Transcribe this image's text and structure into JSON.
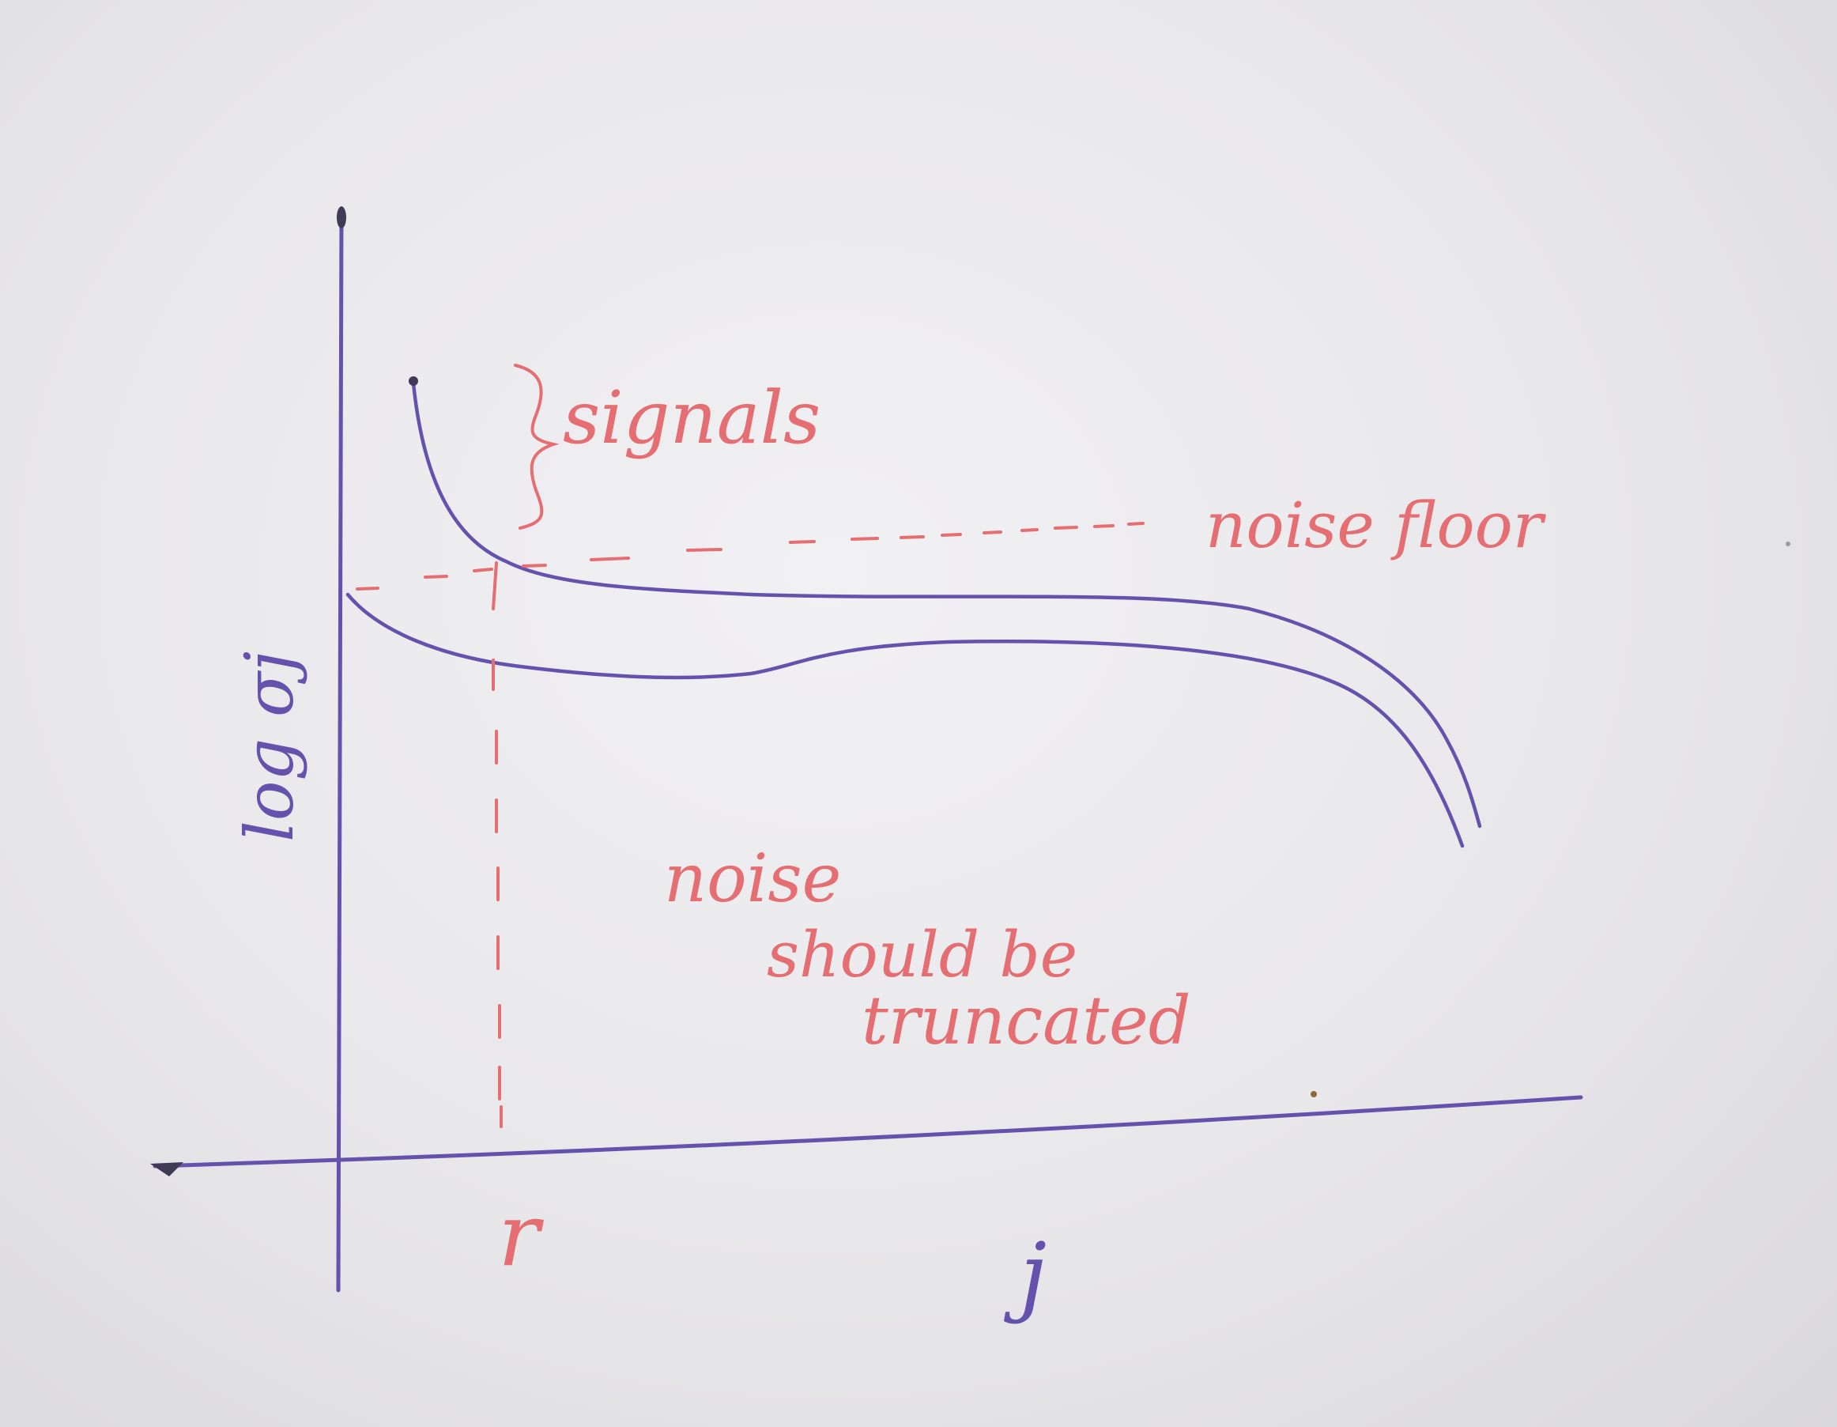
{
  "sketch": {
    "y_axis_label": "log σj",
    "x_axis_label": "j",
    "threshold_label": "r",
    "signals_label": "signals",
    "noise_floor_label": "noise floor",
    "annotation_line1": "noise",
    "annotation_line2": "should be",
    "annotation_line3": "truncated"
  },
  "colors": {
    "ink_blue": "#6552ad",
    "ink_red": "#e46e72",
    "paper": "#eceaee"
  }
}
